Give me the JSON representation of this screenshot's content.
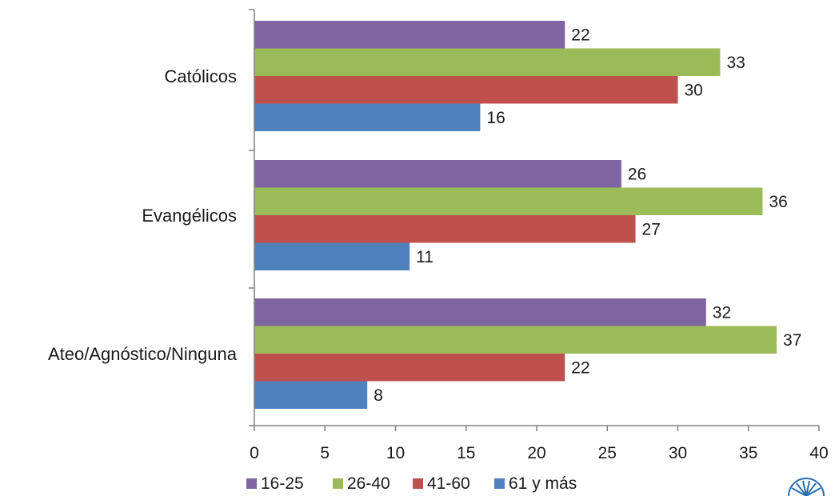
{
  "chart_data": {
    "type": "bar",
    "orientation": "horizontal",
    "categories": [
      "Católicos",
      "Evangélicos",
      "Ateo/Agnóstico/Ninguna"
    ],
    "series": [
      {
        "name": "16-25",
        "color": "#8064A2",
        "values": [
          22,
          26,
          32
        ]
      },
      {
        "name": "26-40",
        "color": "#9BBB59",
        "values": [
          33,
          36,
          37
        ]
      },
      {
        "name": "41-60",
        "color": "#C0504D",
        "values": [
          30,
          27,
          22
        ]
      },
      {
        "name": "61 y más",
        "color": "#4F81BD",
        "values": [
          16,
          11,
          8
        ]
      }
    ],
    "xlim": [
      0,
      40
    ],
    "xticks": [
      0,
      5,
      10,
      15,
      20,
      25,
      30,
      35,
      40
    ],
    "grid": false,
    "legend_position": "bottom",
    "data_labels": true
  },
  "logo": {
    "icon": "barometro-logo-icon"
  }
}
